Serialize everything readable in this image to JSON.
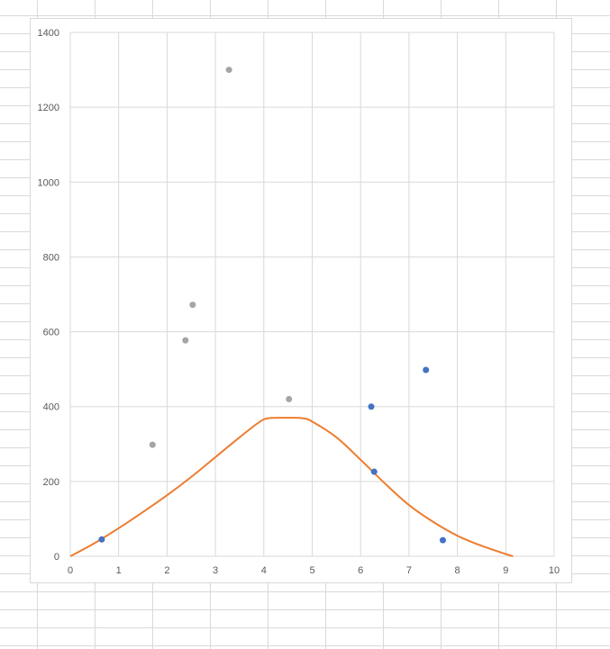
{
  "chart_data": {
    "type": "scatter",
    "title": "",
    "xlabel": "",
    "ylabel": "",
    "xlim": [
      0,
      10
    ],
    "ylim": [
      0,
      1400
    ],
    "xticks": [
      0,
      1,
      2,
      3,
      4,
      5,
      6,
      7,
      8,
      9,
      10
    ],
    "yticks": [
      0,
      200,
      400,
      600,
      800,
      1000,
      1200,
      1400
    ],
    "xtick_labels": [
      "0",
      "1",
      "2",
      "3",
      "4",
      "5",
      "6",
      "7",
      "8",
      "9",
      "10"
    ],
    "ytick_labels": [
      "0",
      "200",
      "400",
      "600",
      "800",
      "1000",
      "1200",
      "1400"
    ],
    "grid": true,
    "legend": "none",
    "series": [
      {
        "kind": "scatter",
        "color": "#4472c4",
        "points": [
          [
            0.65,
            45
          ],
          [
            6.22,
            400
          ],
          [
            6.28,
            226
          ],
          [
            7.35,
            498
          ],
          [
            7.7,
            43
          ]
        ]
      },
      {
        "kind": "scatter",
        "color": "#a5a5a5",
        "points": [
          [
            1.7,
            298
          ],
          [
            2.38,
            577
          ],
          [
            2.53,
            672
          ],
          [
            3.28,
            1300
          ],
          [
            4.52,
            420
          ]
        ]
      },
      {
        "kind": "line",
        "color": "#ed7d31",
        "points": [
          [
            0,
            0
          ],
          [
            0.5,
            35
          ],
          [
            1,
            75
          ],
          [
            1.5,
            118
          ],
          [
            2,
            163
          ],
          [
            2.5,
            212
          ],
          [
            3,
            265
          ],
          [
            3.5,
            318
          ],
          [
            3.9,
            358
          ],
          [
            4.1,
            369
          ],
          [
            4.5,
            370
          ],
          [
            4.8,
            369
          ],
          [
            5,
            360
          ],
          [
            5.5,
            318
          ],
          [
            6,
            258
          ],
          [
            6.5,
            195
          ],
          [
            7,
            137
          ],
          [
            7.5,
            92
          ],
          [
            8,
            55
          ],
          [
            8.5,
            28
          ],
          [
            9,
            6
          ],
          [
            9.15,
            0
          ]
        ]
      }
    ]
  }
}
